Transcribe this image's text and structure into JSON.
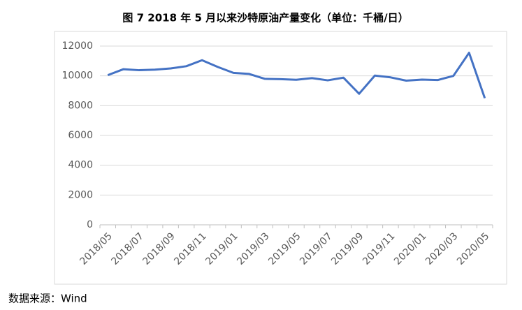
{
  "chart_data": {
    "type": "line",
    "title": "图 7 2018 年 5 月以来沙特原油产量变化（单位：千桶/日）",
    "source": "数据来源：Wind",
    "categories": [
      "2018/05",
      null,
      "2018/07",
      null,
      "2018/09",
      null,
      "2018/11",
      null,
      "2019/01",
      null,
      "2019/03",
      null,
      "2019/05",
      null,
      "2019/07",
      null,
      "2019/09",
      null,
      "2019/11",
      null,
      "2020/01",
      null,
      "2020/03",
      null,
      "2020/05"
    ],
    "values": [
      10050,
      10450,
      10380,
      10420,
      10500,
      10650,
      11050,
      10600,
      10200,
      10130,
      9800,
      9780,
      9740,
      9850,
      9700,
      9880,
      8800,
      10020,
      9900,
      9680,
      9750,
      9720,
      10000,
      11550,
      8500
    ],
    "color": "#4472c4",
    "ylim": [
      0,
      12000
    ],
    "yticks": [
      0,
      2000,
      4000,
      6000,
      8000,
      10000,
      12000
    ],
    "grid": true
  }
}
